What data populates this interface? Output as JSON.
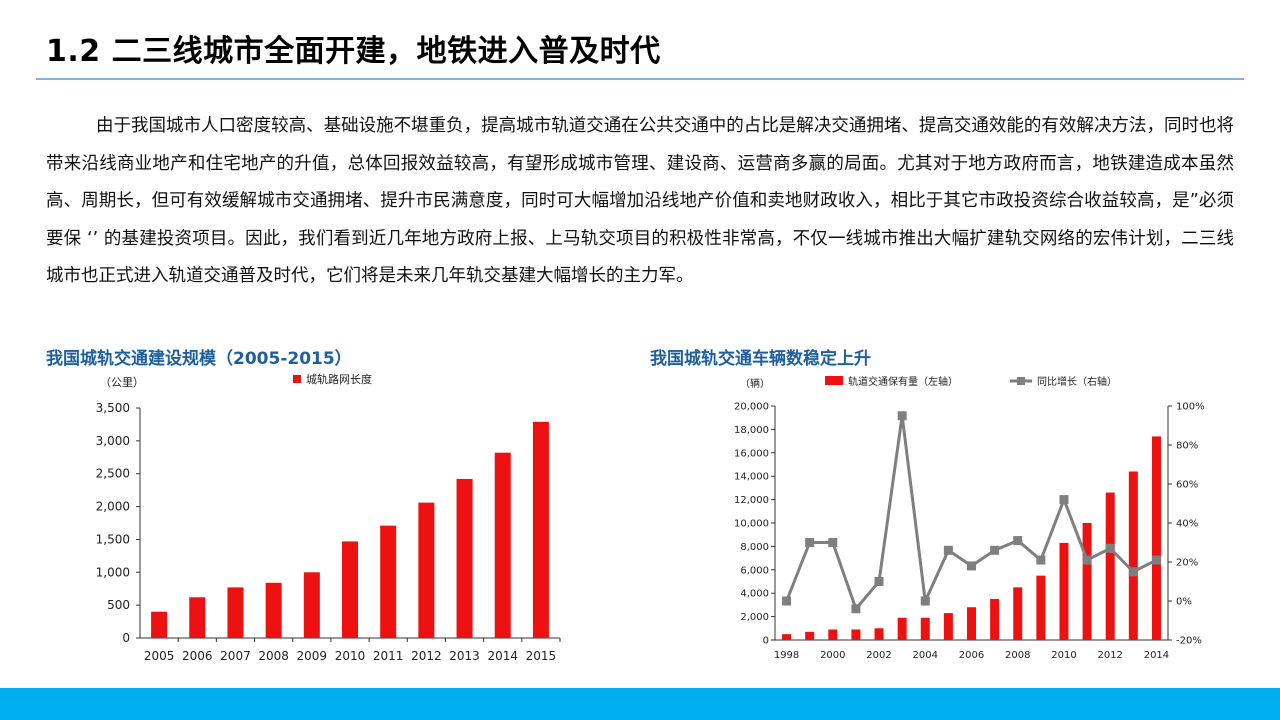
{
  "slide": {
    "title": "1.2 二三线城市全面开建，地铁进入普及时代",
    "paragraph": "由于我国城市人口密度较高、基础设施不堪重负，提高城市轨道交通在公共交通中的占比是解决交通拥堵、提高交通效能的有效解决方法，同时也将带来沿线商业地产和住宅地产的升值，总体回报效益较高，有望形成城市管理、建设商、运营商多赢的局面。尤其对于地方政府而言，地铁建造成本虽然高、周期长，但可有效缓解城市交通拥堵、提升市民满意度，同时可大幅增加沿线地产价值和卖地财政收入，相比于其它市政投资综合收益较高，是”必须要保 ‘’ 的基建投资项目。因此，我们看到近几年地方政府上报、上马轨交项目的积极性非常高，不仅一线城市推出大幅扩建轨交网络的宏伟计划，二三线城市也正式进入轨道交通普及时代，它们将是未来几年轨交基建大幅增长的主力军。"
  },
  "colors": {
    "bar": "#ee1111",
    "line": "#7f7f7f",
    "title_blue": "#1f5f9f",
    "rule": "#7fb5e6",
    "bottom_bar": "#00aeef"
  },
  "chart_data": [
    {
      "type": "bar",
      "title": "我国城轨交通建设规模（2005-2015）",
      "ylabel": "（公里）",
      "categories": [
        "2005",
        "2006",
        "2007",
        "2008",
        "2009",
        "2010",
        "2011",
        "2012",
        "2013",
        "2014",
        "2015"
      ],
      "series": [
        {
          "name": "城轨路网长度",
          "values": [
            400,
            620,
            770,
            840,
            1000,
            1470,
            1710,
            2060,
            2420,
            2820,
            3290
          ]
        }
      ],
      "ylim": [
        0,
        3500
      ],
      "yticks": [
        "0",
        "500",
        "1,000",
        "1,500",
        "2,000",
        "2,500",
        "3,000",
        "3,500"
      ],
      "grid": false,
      "legend": "top"
    },
    {
      "type": "bar",
      "title": "我国城轨交通车辆数稳定上升",
      "ylabel": "（辆）",
      "categories": [
        "1998",
        "1999",
        "2000",
        "2001",
        "2002",
        "2003",
        "2004",
        "2005",
        "2006",
        "2007",
        "2008",
        "2009",
        "2010",
        "2011",
        "2012",
        "2013",
        "2014"
      ],
      "xtick_labels": [
        "1998",
        "2000",
        "2002",
        "2004",
        "2006",
        "2008",
        "2010",
        "2012",
        "2014"
      ],
      "series": [
        {
          "name": "轨道交通保有量（左轴）",
          "axis": "left",
          "values": [
            500,
            700,
            900,
            900,
            1000,
            1900,
            1900,
            2300,
            2800,
            3500,
            4500,
            5500,
            8300,
            10000,
            12600,
            14400,
            17400
          ]
        },
        {
          "name": "同比增长（右轴）",
          "axis": "right",
          "type": "line",
          "values": [
            0,
            30,
            30,
            -4,
            10,
            95,
            0,
            26,
            18,
            26,
            31,
            21,
            52,
            21,
            27,
            15,
            21
          ]
        }
      ],
      "ylim": [
        0,
        20000
      ],
      "yticks": [
        "0",
        "2,000",
        "4,000",
        "6,000",
        "8,000",
        "10,000",
        "12,000",
        "14,000",
        "16,000",
        "18,000",
        "20,000"
      ],
      "y2lim": [
        -20,
        100
      ],
      "y2ticks": [
        "-20%",
        "0%",
        "20%",
        "40%",
        "60%",
        "80%",
        "100%"
      ],
      "grid": false,
      "legend": "top"
    }
  ]
}
